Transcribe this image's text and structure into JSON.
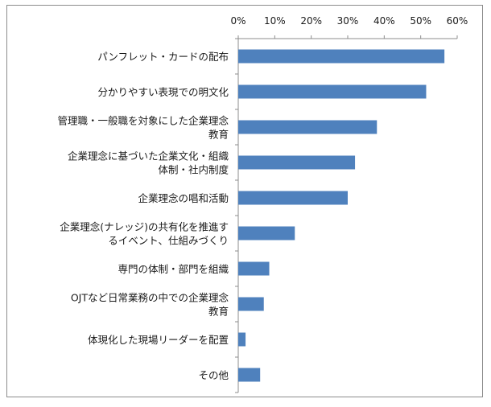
{
  "chart_data": {
    "type": "bar",
    "orientation": "horizontal",
    "title": "",
    "xlabel": "",
    "ylabel": "",
    "xlim": [
      0,
      60
    ],
    "tick_values": [
      0,
      10,
      20,
      30,
      40,
      50,
      60
    ],
    "tick_labels": [
      "0%",
      "10%",
      "20%",
      "30%",
      "40%",
      "50%",
      "60%"
    ],
    "grid": false,
    "legend": "none",
    "bar_color": "#4f81bd",
    "categories": [
      [
        "パンフレット・カードの配布"
      ],
      [
        "分かりやすい表現での明文化"
      ],
      [
        "管理職・一般職を対象にした企業理念",
        "教育"
      ],
      [
        "企業理念に基づいた企業文化・組織",
        "体制・社内制度"
      ],
      [
        "企業理念の唱和活動"
      ],
      [
        "企業理念(ナレッジ)の共有化を推進す",
        "るイベント、仕組みづくり"
      ],
      [
        "専門の体制・部門を組織"
      ],
      [
        "OJTなど日常業務の中での企業理念",
        "教育"
      ],
      [
        "体現化した現場リーダーを配置"
      ],
      [
        "その他"
      ]
    ],
    "values": [
      56.5,
      51.5,
      38,
      32,
      30,
      15.5,
      8.5,
      7,
      2,
      6
    ]
  }
}
